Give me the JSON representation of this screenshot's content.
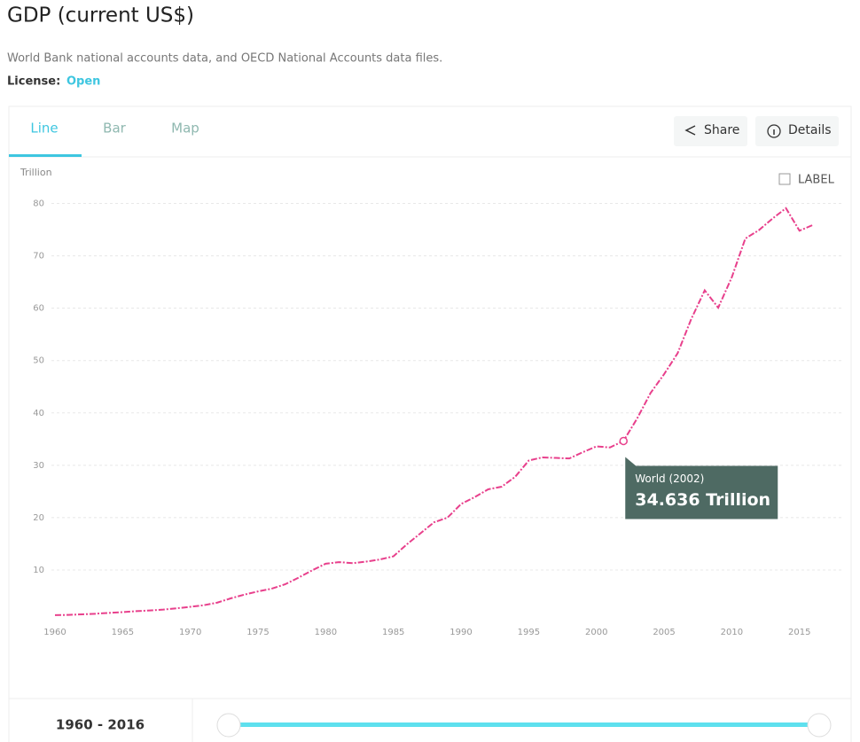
{
  "header": {
    "title": "GDP (current US$)",
    "source": "World Bank national accounts data, and OECD National Accounts data files.",
    "license_label": "License:",
    "license_value": "Open"
  },
  "tabs": [
    "Line",
    "Bar",
    "Map"
  ],
  "buttons": [
    "Share",
    "Details"
  ],
  "label_toggle": "LABEL",
  "range_label": "1960 - 2016",
  "chart_data": {
    "type": "line",
    "y_unit": "Trillion",
    "x": [
      1960,
      1961,
      1962,
      1963,
      1964,
      1965,
      1966,
      1967,
      1968,
      1969,
      1970,
      1971,
      1972,
      1973,
      1974,
      1975,
      1976,
      1977,
      1978,
      1979,
      1980,
      1981,
      1982,
      1983,
      1984,
      1985,
      1986,
      1987,
      1988,
      1989,
      1990,
      1991,
      1992,
      1993,
      1994,
      1995,
      1996,
      1997,
      1998,
      1999,
      2000,
      2001,
      2002,
      2003,
      2004,
      2005,
      2006,
      2007,
      2008,
      2009,
      2010,
      2011,
      2012,
      2013,
      2014,
      2015,
      2016
    ],
    "series": [
      {
        "color": "#e8408c",
        "values": [
          1.37,
          1.42,
          1.53,
          1.64,
          1.8,
          1.96,
          2.13,
          2.26,
          2.43,
          2.68,
          2.96,
          3.27,
          3.77,
          4.59,
          5.3,
          5.9,
          6.42,
          7.26,
          8.54,
          9.93,
          11.2,
          11.5,
          11.3,
          11.6,
          12.0,
          12.6,
          14.9,
          17.0,
          19.1,
          20.0,
          22.6,
          23.9,
          25.4,
          25.9,
          27.8,
          30.9,
          31.5,
          31.4,
          31.3,
          32.5,
          33.6,
          33.4,
          34.636,
          38.9,
          43.8,
          47.4,
          51.4,
          57.9,
          63.4,
          60.1,
          65.9,
          73.3,
          74.9,
          77.1,
          79.1,
          74.8,
          75.9
        ]
      }
    ],
    "xlim": [
      1960,
      2016
    ],
    "ylim": [
      0,
      85
    ],
    "xticks": [
      1960,
      1965,
      1970,
      1975,
      1980,
      1985,
      1990,
      1995,
      2000,
      2005,
      2010,
      2015
    ],
    "yticks": [
      10,
      20,
      30,
      40,
      50,
      60,
      70,
      80
    ],
    "grid": true,
    "tooltip": {
      "title": "World (2002)",
      "value": "34.636 Trillion",
      "index": 42
    }
  }
}
